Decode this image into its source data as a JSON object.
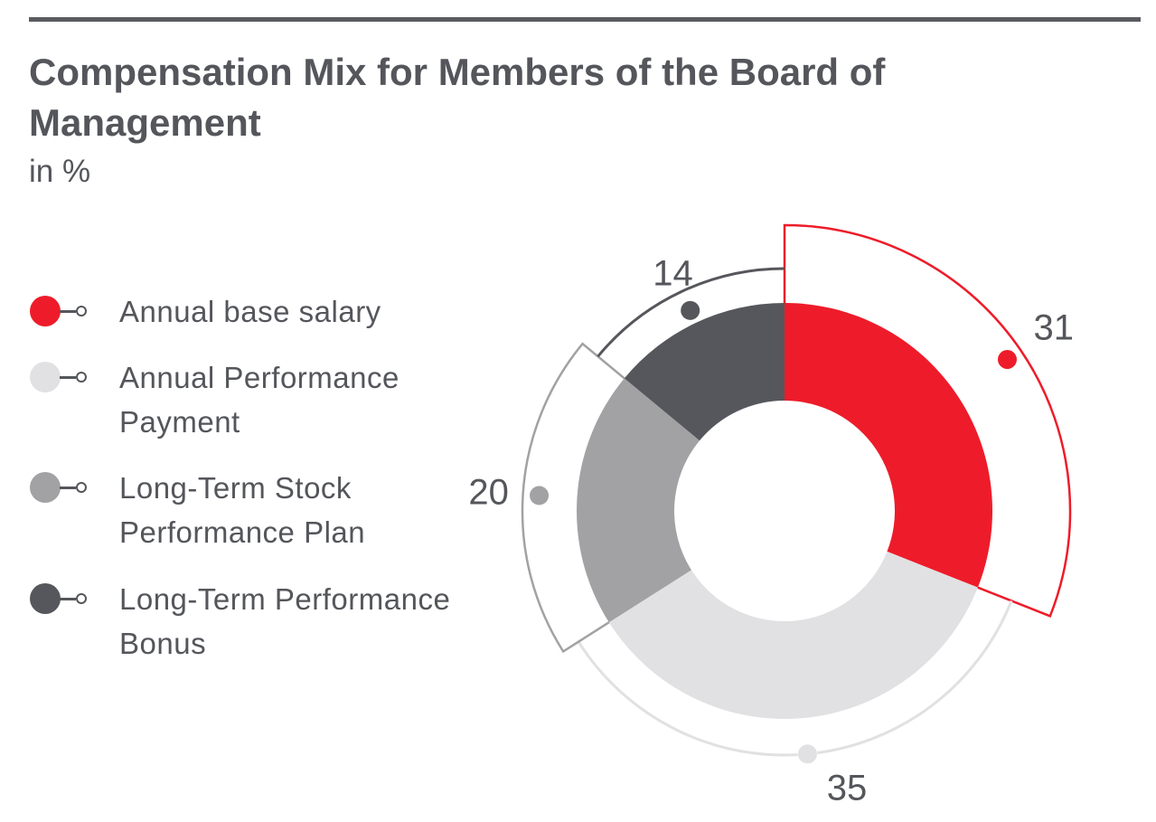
{
  "title": "Compensation Mix for Members of the Board of Management",
  "subtitle": "in %",
  "chart_data": {
    "type": "pie",
    "variant": "donut",
    "title": "Compensation Mix for Members of the Board of Management",
    "subtitle": "in %",
    "legend_position": "left",
    "series": [
      {
        "name": "Annual base salary",
        "value": 31,
        "color": "#ee1c2a"
      },
      {
        "name": "Annual Performance Payment",
        "value": 35,
        "color": "#e1e1e3"
      },
      {
        "name": "Long-Term Stock Performance Plan",
        "value": 20,
        "color": "#a2a2a4"
      },
      {
        "name": "Long-Term Performance Bonus",
        "value": 14,
        "color": "#56575c"
      }
    ]
  },
  "legend": [
    {
      "label": "Annual base salary",
      "color": "#ee1c2a"
    },
    {
      "label": "Annual Performance\nPayment",
      "color": "#e1e1e3"
    },
    {
      "label": "Long-Term Stock\nPerformance Plan",
      "color": "#a2a2a4"
    },
    {
      "label": "Long-Term Performance\nBonus",
      "color": "#56575c"
    }
  ]
}
